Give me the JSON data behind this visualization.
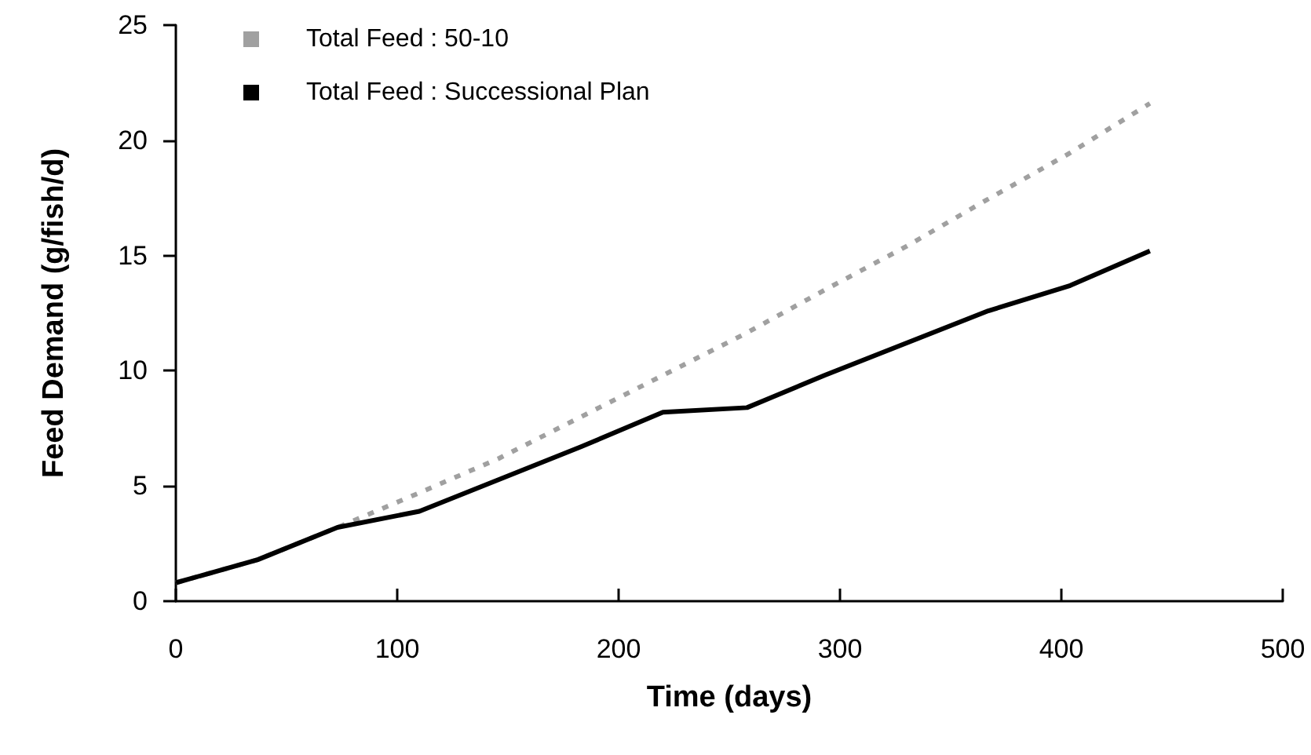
{
  "chart_data": {
    "type": "line",
    "xlabel": "Time (days)",
    "ylabel": "Feed Demand (g/fish/d)",
    "xlim": [
      0,
      500
    ],
    "xticks": [
      0,
      100,
      200,
      300,
      400,
      500
    ],
    "ylim": [
      0,
      25
    ],
    "yticks": [
      0,
      5,
      10,
      15,
      20,
      25
    ],
    "grid": false,
    "legend": "top left",
    "marker": "none",
    "series": [
      {
        "name": "Total Feed : 50-10",
        "color": "#a0a0a0",
        "line_style": "dashed",
        "x": [
          0,
          37,
          73,
          110,
          146,
          183,
          220,
          257,
          293,
          330,
          366,
          403,
          440
        ],
        "values": [
          0.8,
          1.8,
          3.2,
          4.7,
          6.2,
          8.0,
          9.8,
          11.6,
          13.5,
          15.4,
          17.4,
          19.4,
          21.6
        ]
      },
      {
        "name": "Total Feed : Successional Plan",
        "color": "#000000",
        "line_style": "solid",
        "x": [
          0,
          37,
          73,
          110,
          183,
          220,
          258,
          293,
          367,
          404,
          440
        ],
        "values": [
          0.8,
          1.8,
          3.2,
          3.9,
          6.7,
          8.2,
          8.4,
          9.8,
          12.6,
          13.7,
          15.2
        ]
      }
    ]
  }
}
